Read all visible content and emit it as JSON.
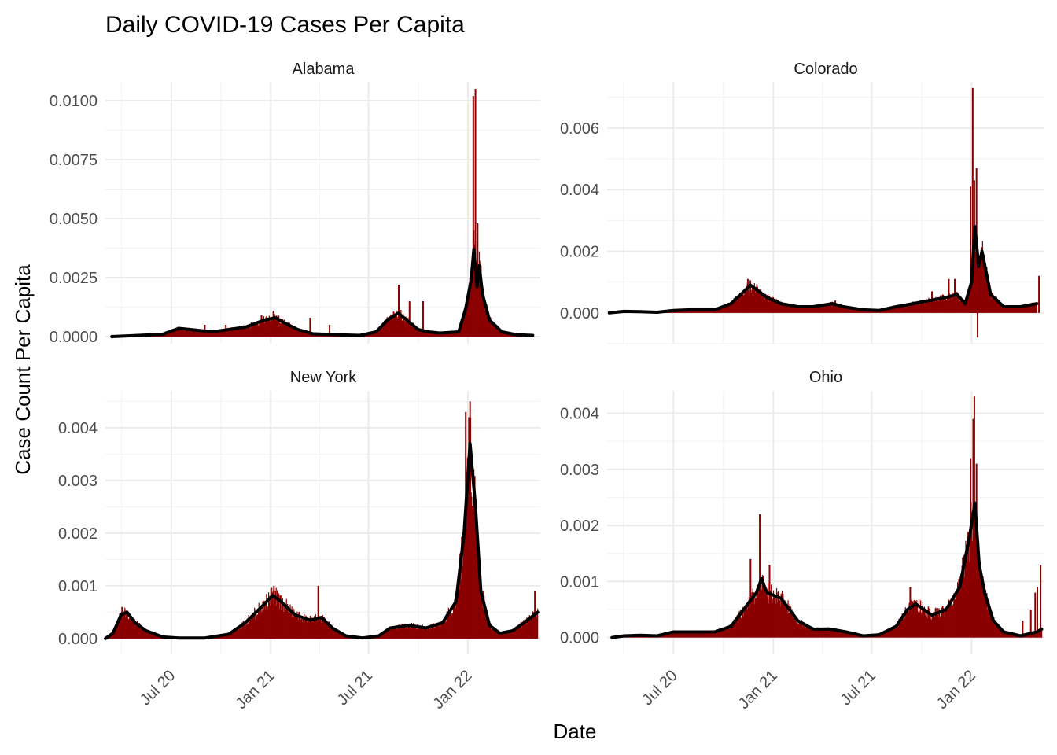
{
  "chart_data": {
    "type": "bar",
    "title": "Daily COVID-19 Cases Per Capita",
    "xlabel": "Date",
    "ylabel": "Case Count Per Capita",
    "x_range": [
      "2020-03-01",
      "2022-05-15"
    ],
    "x_ticks": [
      "2020-07-01",
      "2021-01-01",
      "2021-07-01",
      "2022-01-01"
    ],
    "x_tick_labels": [
      "Jul 20",
      "Jan 21",
      "Jul 21",
      "Jan 22"
    ],
    "x_tick_rotation": "45deg",
    "grid": true,
    "series_style": {
      "bars": "#8b0000",
      "smoothed_line": "#000000"
    },
    "series_names": [],
    "panels": [
      {
        "state": "Alabama",
        "ylim": [
          -0.0003,
          0.0108
        ],
        "y_ticks": [
          0,
          0.0025,
          0.005,
          0.0075,
          0.01
        ],
        "y_tick_labels": [
          "0.0000",
          "0.0025",
          "0.0050",
          "0.0075",
          "0.0100"
        ],
        "smoothed_line": [
          [
            "2020-03-13",
            0
          ],
          [
            "2020-05-01",
            5e-05
          ],
          [
            "2020-06-15",
            0.0001
          ],
          [
            "2020-07-15",
            0.00035
          ],
          [
            "2020-08-05",
            0.0003
          ],
          [
            "2020-09-15",
            0.0002
          ],
          [
            "2020-10-15",
            0.0003
          ],
          [
            "2020-11-15",
            0.0004
          ],
          [
            "2020-12-20",
            0.0007
          ],
          [
            "2021-01-10",
            0.0008
          ],
          [
            "2021-01-25",
            0.0006
          ],
          [
            "2021-02-20",
            0.0003
          ],
          [
            "2021-03-20",
            0.00012
          ],
          [
            "2021-05-01",
            8e-05
          ],
          [
            "2021-06-15",
            5e-05
          ],
          [
            "2021-07-15",
            0.0002
          ],
          [
            "2021-08-05",
            0.0007
          ],
          [
            "2021-08-25",
            0.001
          ],
          [
            "2021-09-10",
            0.0007
          ],
          [
            "2021-10-01",
            0.0003
          ],
          [
            "2021-10-20",
            0.0002
          ],
          [
            "2021-11-10",
            0.00015
          ],
          [
            "2021-12-15",
            0.0002
          ],
          [
            "2021-12-28",
            0.0012
          ],
          [
            "2022-01-07",
            0.0024
          ],
          [
            "2022-01-12",
            0.0037
          ],
          [
            "2022-01-18",
            0.0021
          ],
          [
            "2022-01-22",
            0.003
          ],
          [
            "2022-01-28",
            0.0018
          ],
          [
            "2022-02-10",
            0.0007
          ],
          [
            "2022-03-05",
            0.0002
          ],
          [
            "2022-04-01",
            8e-05
          ],
          [
            "2022-05-01",
            5e-05
          ]
        ],
        "spikes": [
          [
            "2020-07-20",
            0.0004
          ],
          [
            "2020-09-01",
            0.0005
          ],
          [
            "2020-10-10",
            0.0005
          ],
          [
            "2020-12-15",
            0.0009
          ],
          [
            "2021-01-06",
            0.0011
          ],
          [
            "2021-03-15",
            0.0008
          ],
          [
            "2021-04-20",
            0.0005
          ],
          [
            "2021-08-26",
            0.0022
          ],
          [
            "2021-09-15",
            0.0015
          ],
          [
            "2021-10-10",
            0.0015
          ],
          [
            "2022-01-05",
            0.0025
          ],
          [
            "2022-01-11",
            0.0102
          ],
          [
            "2022-01-15",
            0.0105
          ],
          [
            "2022-01-19",
            0.0048
          ],
          [
            "2022-01-25",
            0.003
          ]
        ]
      },
      {
        "state": "Colorado",
        "ylim": [
          -0.001,
          0.0075
        ],
        "y_ticks": [
          0,
          0.002,
          0.004,
          0.006
        ],
        "y_tick_labels": [
          "0.000",
          "0.002",
          "0.004",
          "0.006"
        ],
        "smoothed_line": [
          [
            "2020-03-05",
            0
          ],
          [
            "2020-04-01",
            5e-05
          ],
          [
            "2020-05-01",
            4e-05
          ],
          [
            "2020-06-01",
            2e-05
          ],
          [
            "2020-07-01",
            8e-05
          ],
          [
            "2020-08-01",
            0.0001
          ],
          [
            "2020-09-15",
            0.0001
          ],
          [
            "2020-10-15",
            0.0003
          ],
          [
            "2020-11-08",
            0.0007
          ],
          [
            "2020-11-20",
            0.0009
          ],
          [
            "2020-12-05",
            0.0007
          ],
          [
            "2020-12-20",
            0.0005
          ],
          [
            "2021-01-15",
            0.0003
          ],
          [
            "2021-02-15",
            0.0002
          ],
          [
            "2021-03-15",
            0.0002
          ],
          [
            "2021-04-20",
            0.0003
          ],
          [
            "2021-05-10",
            0.0002
          ],
          [
            "2021-06-15",
            0.0001
          ],
          [
            "2021-07-15",
            8e-05
          ],
          [
            "2021-08-15",
            0.0002
          ],
          [
            "2021-09-15",
            0.0003
          ],
          [
            "2021-10-15",
            0.0004
          ],
          [
            "2021-11-15",
            0.0005
          ],
          [
            "2021-12-05",
            0.0006
          ],
          [
            "2021-12-20",
            0.0003
          ],
          [
            "2022-01-01",
            0.001
          ],
          [
            "2022-01-07",
            0.0028
          ],
          [
            "2022-01-14",
            0.0015
          ],
          [
            "2022-01-20",
            0.002
          ],
          [
            "2022-02-05",
            0.0006
          ],
          [
            "2022-03-01",
            0.0002
          ],
          [
            "2022-04-01",
            0.0002
          ],
          [
            "2022-05-01",
            0.0003
          ]
        ],
        "spikes": [
          [
            "2020-11-15",
            0.0011
          ],
          [
            "2021-04-25",
            0.0004
          ],
          [
            "2021-10-20",
            0.0007
          ],
          [
            "2021-11-20",
            0.0011
          ],
          [
            "2021-12-01",
            0.0011
          ],
          [
            "2021-12-30",
            0.0041
          ],
          [
            "2022-01-03",
            0.0073
          ],
          [
            "2022-01-06",
            0.0043
          ],
          [
            "2022-01-10",
            0.0047
          ],
          [
            "2022-01-12",
            -0.0008
          ],
          [
            "2022-01-21",
            0.0019
          ],
          [
            "2022-05-05",
            0.0012
          ]
        ]
      },
      {
        "state": "New York",
        "ylim": [
          -0.0003,
          0.0047
        ],
        "y_ticks": [
          0,
          0.001,
          0.002,
          0.003,
          0.004
        ],
        "y_tick_labels": [
          "0.000",
          "0.001",
          "0.002",
          "0.003",
          "0.004"
        ],
        "smoothed_line": [
          [
            "2020-03-01",
            0
          ],
          [
            "2020-03-15",
            0.0001
          ],
          [
            "2020-03-30",
            0.00045
          ],
          [
            "2020-04-10",
            0.0005
          ],
          [
            "2020-04-25",
            0.0003
          ],
          [
            "2020-05-15",
            0.00015
          ],
          [
            "2020-06-15",
            3e-05
          ],
          [
            "2020-07-15",
            1e-05
          ],
          [
            "2020-09-01",
            1e-05
          ],
          [
            "2020-10-15",
            8e-05
          ],
          [
            "2020-11-15",
            0.0003
          ],
          [
            "2020-12-15",
            0.0006
          ],
          [
            "2021-01-05",
            0.00082
          ],
          [
            "2021-01-20",
            0.0007
          ],
          [
            "2021-02-15",
            0.00045
          ],
          [
            "2021-03-15",
            0.00035
          ],
          [
            "2021-04-05",
            0.0004
          ],
          [
            "2021-04-25",
            0.0002
          ],
          [
            "2021-05-20",
            5e-05
          ],
          [
            "2021-06-20",
            1e-05
          ],
          [
            "2021-07-20",
            5e-05
          ],
          [
            "2021-08-10",
            0.0002
          ],
          [
            "2021-09-15",
            0.00025
          ],
          [
            "2021-10-15",
            0.0002
          ],
          [
            "2021-11-15",
            0.0003
          ],
          [
            "2021-12-10",
            0.0007
          ],
          [
            "2021-12-25",
            0.002
          ],
          [
            "2022-01-05",
            0.0037
          ],
          [
            "2022-01-15",
            0.0025
          ],
          [
            "2022-01-25",
            0.0009
          ],
          [
            "2022-02-10",
            0.00025
          ],
          [
            "2022-03-01",
            0.0001
          ],
          [
            "2022-03-25",
            0.00015
          ],
          [
            "2022-04-15",
            0.0003
          ],
          [
            "2022-05-10",
            0.0005
          ]
        ],
        "spikes": [
          [
            "2020-04-01",
            0.0006
          ],
          [
            "2021-01-07",
            0.001
          ],
          [
            "2021-03-30",
            0.001
          ],
          [
            "2021-12-28",
            0.0043
          ],
          [
            "2022-01-03",
            0.0042
          ],
          [
            "2022-01-05",
            0.0045
          ],
          [
            "2022-05-05",
            0.0009
          ]
        ]
      },
      {
        "state": "Ohio",
        "ylim": [
          -0.0003,
          0.0044
        ],
        "y_ticks": [
          0,
          0.001,
          0.002,
          0.003,
          0.004
        ],
        "y_tick_labels": [
          "0.000",
          "0.001",
          "0.002",
          "0.003",
          "0.004"
        ],
        "smoothed_line": [
          [
            "2020-03-10",
            0
          ],
          [
            "2020-04-01",
            3e-05
          ],
          [
            "2020-05-01",
            4e-05
          ],
          [
            "2020-06-01",
            3e-05
          ],
          [
            "2020-07-01",
            0.0001
          ],
          [
            "2020-08-01",
            0.0001
          ],
          [
            "2020-09-15",
            0.0001
          ],
          [
            "2020-10-15",
            0.0002
          ],
          [
            "2020-11-15",
            0.0006
          ],
          [
            "2020-12-01",
            0.0008
          ],
          [
            "2020-12-10",
            0.00105
          ],
          [
            "2020-12-20",
            0.0008
          ],
          [
            "2021-01-15",
            0.0007
          ],
          [
            "2021-02-15",
            0.0003
          ],
          [
            "2021-03-15",
            0.00015
          ],
          [
            "2021-04-15",
            0.00015
          ],
          [
            "2021-05-15",
            0.0001
          ],
          [
            "2021-06-15",
            3e-05
          ],
          [
            "2021-07-15",
            5e-05
          ],
          [
            "2021-08-15",
            0.0002
          ],
          [
            "2021-09-05",
            0.0005
          ],
          [
            "2021-09-20",
            0.0006
          ],
          [
            "2021-10-20",
            0.0004
          ],
          [
            "2021-11-15",
            0.0005
          ],
          [
            "2021-12-10",
            0.0009
          ],
          [
            "2021-12-28",
            0.0018
          ],
          [
            "2022-01-07",
            0.0024
          ],
          [
            "2022-01-15",
            0.0013
          ],
          [
            "2022-01-25",
            0.0008
          ],
          [
            "2022-02-10",
            0.0003
          ],
          [
            "2022-03-01",
            0.0001
          ],
          [
            "2022-04-01",
            3e-05
          ],
          [
            "2022-05-01",
            0.0001
          ],
          [
            "2022-05-10",
            0.00015
          ]
        ],
        "spikes": [
          [
            "2020-11-20",
            0.0014
          ],
          [
            "2020-12-07",
            0.0022
          ],
          [
            "2020-12-25",
            0.0013
          ],
          [
            "2021-09-10",
            0.0009
          ],
          [
            "2021-12-30",
            0.0032
          ],
          [
            "2022-01-04",
            0.0039
          ],
          [
            "2022-01-06",
            0.0043
          ],
          [
            "2022-01-10",
            0.0031
          ],
          [
            "2022-04-05",
            0.0003
          ],
          [
            "2022-04-20",
            0.0005
          ],
          [
            "2022-04-28",
            0.0008
          ],
          [
            "2022-05-02",
            0.0009
          ],
          [
            "2022-05-08",
            0.0013
          ]
        ]
      }
    ]
  }
}
